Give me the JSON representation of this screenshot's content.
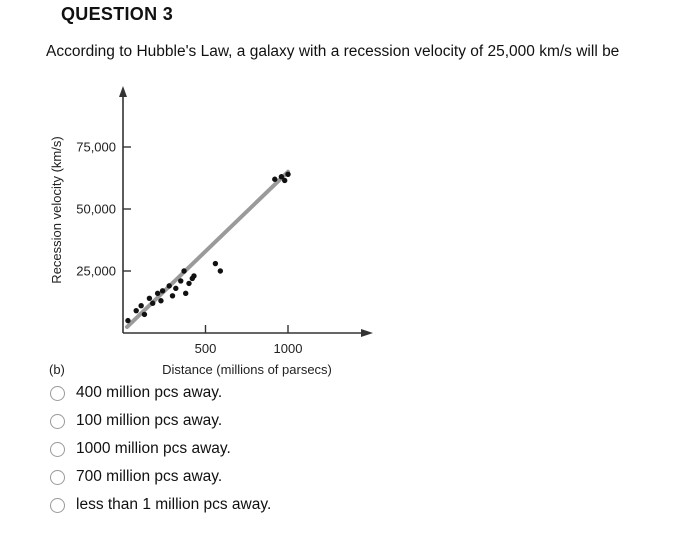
{
  "question": {
    "title": "QUESTION 3",
    "text": "According to Hubble's Law, a galaxy with a recession velocity of 25,000 km/s will be"
  },
  "figure": {
    "panel_label": "(b)",
    "chart_data": {
      "type": "scatter",
      "title": "",
      "xlabel": "Distance (millions of parsecs)",
      "ylabel": "Recession velocity (km/s)",
      "x_ticks": [
        500,
        1000
      ],
      "x_tick_labels": [
        "500",
        "1000"
      ],
      "y_ticks": [
        25000,
        50000,
        75000
      ],
      "y_tick_labels": [
        "25,000",
        "50,000",
        "75,000"
      ],
      "xlim": [
        0,
        1400
      ],
      "ylim": [
        0,
        95000
      ],
      "grid": false,
      "series": [
        {
          "points": [
            [
              30,
              5000
            ],
            [
              80,
              9000
            ],
            [
              110,
              11000
            ],
            [
              130,
              7500
            ],
            [
              160,
              14000
            ],
            [
              180,
              12000
            ],
            [
              210,
              16000
            ],
            [
              230,
              13000
            ],
            [
              240,
              17000
            ],
            [
              280,
              19000
            ],
            [
              300,
              15000
            ],
            [
              320,
              18000
            ],
            [
              350,
              21000
            ],
            [
              370,
              25000
            ],
            [
              380,
              16000
            ],
            [
              400,
              20000
            ],
            [
              420,
              22000
            ],
            [
              430,
              23000
            ],
            [
              560,
              28000
            ],
            [
              590,
              25000
            ],
            [
              920,
              62000
            ],
            [
              960,
              63000
            ],
            [
              980,
              61500
            ],
            [
              1000,
              64000
            ]
          ]
        }
      ],
      "fit_line": {
        "from": [
          0,
          0
        ],
        "to": [
          1000,
          65000
        ]
      },
      "colors": {
        "points": "#111111",
        "fit_line": "#9a9a9a",
        "axes": "#333333"
      }
    }
  },
  "options": [
    {
      "label": "400 million pcs away."
    },
    {
      "label": "100 million pcs away."
    },
    {
      "label": "1000 million pcs away."
    },
    {
      "label": "700 million pcs away."
    },
    {
      "label": "less than 1 million pcs away."
    }
  ]
}
